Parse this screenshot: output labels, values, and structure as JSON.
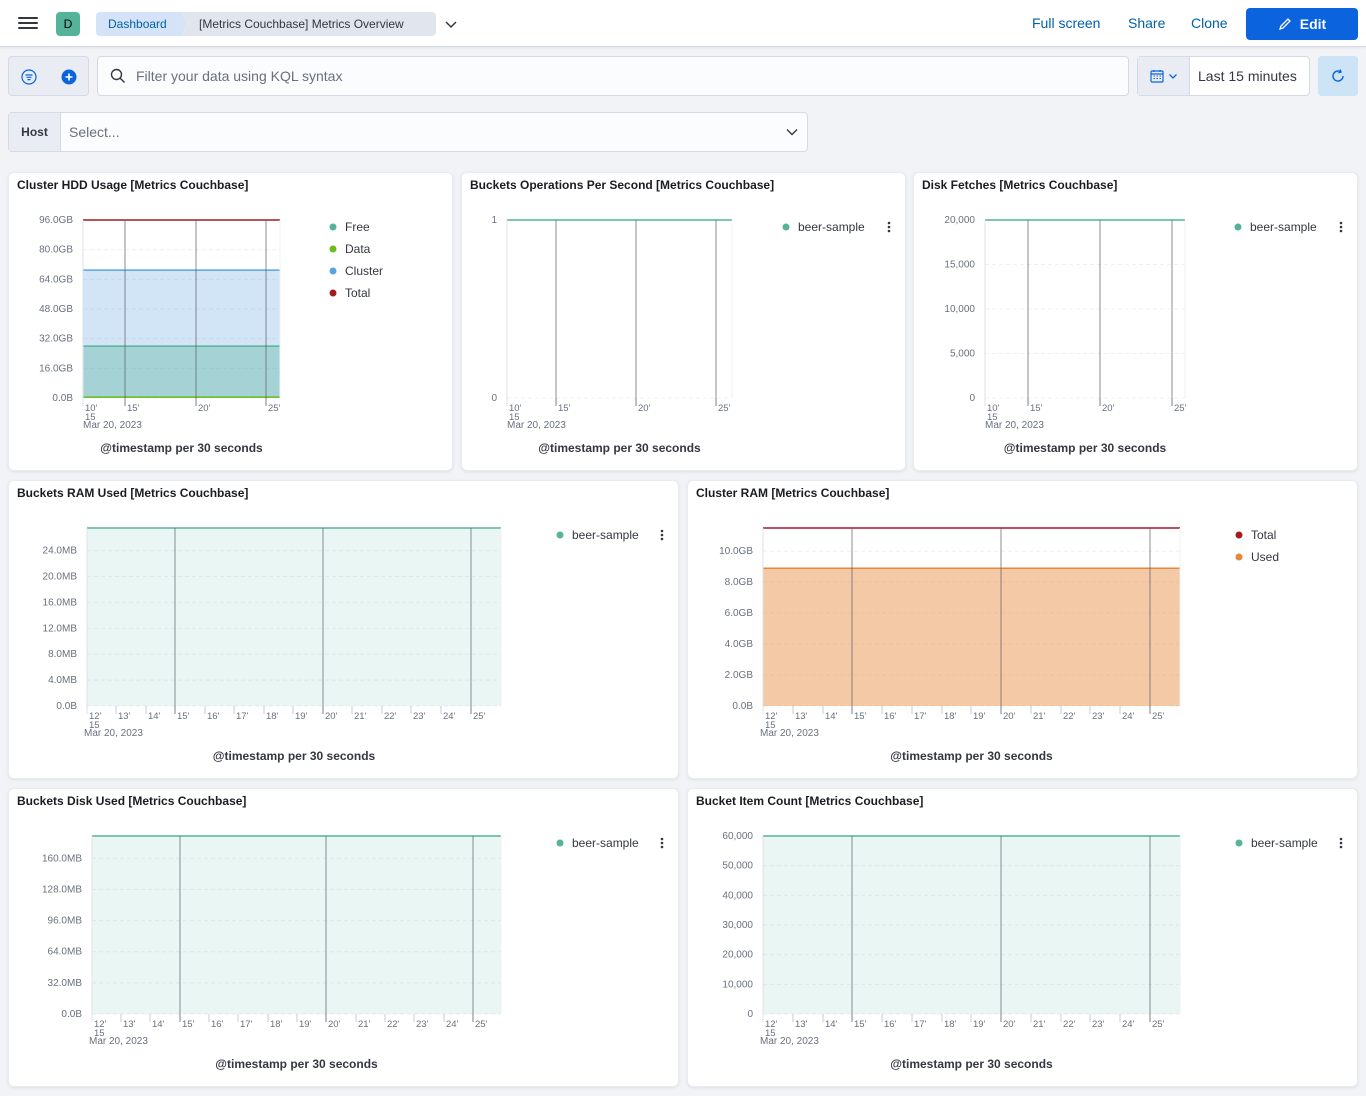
{
  "header": {
    "avatar_letter": "D",
    "breadcrumbs": [
      "Dashboard",
      "[Metrics Couchbase] Metrics Overview"
    ],
    "links": {
      "full_screen": "Full screen",
      "share": "Share",
      "clone": "Clone"
    },
    "edit_label": "Edit"
  },
  "query": {
    "placeholder": "Filter your data using KQL syntax"
  },
  "time": {
    "label": "Last 15 minutes"
  },
  "host_control": {
    "label": "Host",
    "placeholder": "Select..."
  },
  "colors": {
    "teal": "#54b399",
    "green": "#6dbb1e",
    "blue": "#59a3e0",
    "red": "#a01c20",
    "orange": "#e7873a"
  },
  "panels": [
    {
      "title": "Cluster HDD Usage [Metrics Couchbase]",
      "xlabel": "@timestamp per 30 seconds",
      "date_label": "Mar 20, 2023",
      "x_ticks": [
        "10'\n15",
        "15'",
        "20'",
        "25'"
      ],
      "legend": [
        "Free",
        "Data",
        "Cluster",
        "Total"
      ],
      "chart_data": {
        "type": "area",
        "y_ticks": [
          "0.0B",
          "16.0GB",
          "32.0GB",
          "48.0GB",
          "64.0GB",
          "80.0GB",
          "96.0GB"
        ],
        "ylim": [
          0,
          96
        ],
        "unit": "GB",
        "series": [
          {
            "name": "Free",
            "value": 28,
            "color": "teal"
          },
          {
            "name": "Data",
            "value": 0.5,
            "color": "green"
          },
          {
            "name": "Cluster",
            "value": 69,
            "color": "blue"
          },
          {
            "name": "Total",
            "value": 96,
            "color": "red"
          }
        ]
      }
    },
    {
      "title": "Buckets Operations Per Second [Metrics Couchbase]",
      "xlabel": "@timestamp per 30 seconds",
      "date_label": "Mar 20, 2023",
      "x_ticks": [
        "10'\n15",
        "15'",
        "20'",
        "25'"
      ],
      "legend": [
        "beer-sample"
      ],
      "chart_data": {
        "type": "line",
        "y_ticks": [
          "0",
          "1"
        ],
        "ylim": [
          0,
          1
        ],
        "series": [
          {
            "name": "beer-sample",
            "value": 1,
            "color": "teal"
          }
        ]
      }
    },
    {
      "title": "Disk Fetches [Metrics Couchbase]",
      "xlabel": "@timestamp per 30 seconds",
      "date_label": "Mar 20, 2023",
      "x_ticks": [
        "10'\n15",
        "15'",
        "20'",
        "25'"
      ],
      "legend": [
        "beer-sample"
      ],
      "chart_data": {
        "type": "line",
        "y_ticks": [
          "0",
          "5,000",
          "10,000",
          "15,000",
          "20,000"
        ],
        "ylim": [
          0,
          20000
        ],
        "series": [
          {
            "name": "beer-sample",
            "value": 20000,
            "color": "teal"
          }
        ]
      }
    },
    {
      "title": "Buckets RAM Used [Metrics Couchbase]",
      "xlabel": "@timestamp per 30 seconds",
      "date_label": "Mar 20, 2023",
      "x_ticks": [
        "12'\n15",
        "13'",
        "14'",
        "15'",
        "16'",
        "17'",
        "18'",
        "19'",
        "20'",
        "21'",
        "22'",
        "23'",
        "24'",
        "25'"
      ],
      "legend": [
        "beer-sample"
      ],
      "chart_data": {
        "type": "area",
        "y_ticks": [
          "0.0B",
          "4.0MB",
          "8.0MB",
          "12.0MB",
          "16.0MB",
          "20.0MB",
          "24.0MB"
        ],
        "ylim": [
          0,
          27.5
        ],
        "unit": "MB",
        "series": [
          {
            "name": "beer-sample",
            "value": 27.5,
            "color": "teal"
          }
        ]
      }
    },
    {
      "title": "Cluster RAM [Metrics Couchbase]",
      "xlabel": "@timestamp per 30 seconds",
      "date_label": "Mar 20, 2023",
      "x_ticks": [
        "12'\n15",
        "13'",
        "14'",
        "15'",
        "16'",
        "17'",
        "18'",
        "19'",
        "20'",
        "21'",
        "22'",
        "23'",
        "24'",
        "25'"
      ],
      "legend": [
        "Total",
        "Used"
      ],
      "chart_data": {
        "type": "area",
        "y_ticks": [
          "0.0B",
          "2.0GB",
          "4.0GB",
          "6.0GB",
          "8.0GB",
          "10.0GB"
        ],
        "ylim": [
          0,
          11.5
        ],
        "unit": "GB",
        "series": [
          {
            "name": "Total",
            "value": 11.5,
            "color": "red"
          },
          {
            "name": "Used",
            "value": 8.9,
            "color": "orange"
          }
        ]
      }
    },
    {
      "title": "Buckets Disk Used [Metrics Couchbase]",
      "xlabel": "@timestamp per 30 seconds",
      "date_label": "Mar 20, 2023",
      "x_ticks": [
        "12'\n15",
        "13'",
        "14'",
        "15'",
        "16'",
        "17'",
        "18'",
        "19'",
        "20'",
        "21'",
        "22'",
        "23'",
        "24'",
        "25'"
      ],
      "legend": [
        "beer-sample"
      ],
      "chart_data": {
        "type": "area",
        "y_ticks": [
          "0.0B",
          "32.0MB",
          "64.0MB",
          "96.0MB",
          "128.0MB",
          "160.0MB"
        ],
        "ylim": [
          0,
          183
        ],
        "unit": "MB",
        "series": [
          {
            "name": "beer-sample",
            "value": 183,
            "color": "teal"
          }
        ]
      }
    },
    {
      "title": "Bucket Item Count [Metrics Couchbase]",
      "xlabel": "@timestamp per 30 seconds",
      "date_label": "Mar 20, 2023",
      "x_ticks": [
        "12'\n15",
        "13'",
        "14'",
        "15'",
        "16'",
        "17'",
        "18'",
        "19'",
        "20'",
        "21'",
        "22'",
        "23'",
        "24'",
        "25'"
      ],
      "legend": [
        "beer-sample"
      ],
      "chart_data": {
        "type": "area",
        "y_ticks": [
          "0",
          "10,000",
          "20,000",
          "30,000",
          "40,000",
          "50,000",
          "60,000"
        ],
        "ylim": [
          0,
          60000
        ],
        "series": [
          {
            "name": "beer-sample",
            "value": 60000,
            "color": "teal"
          }
        ]
      }
    }
  ]
}
